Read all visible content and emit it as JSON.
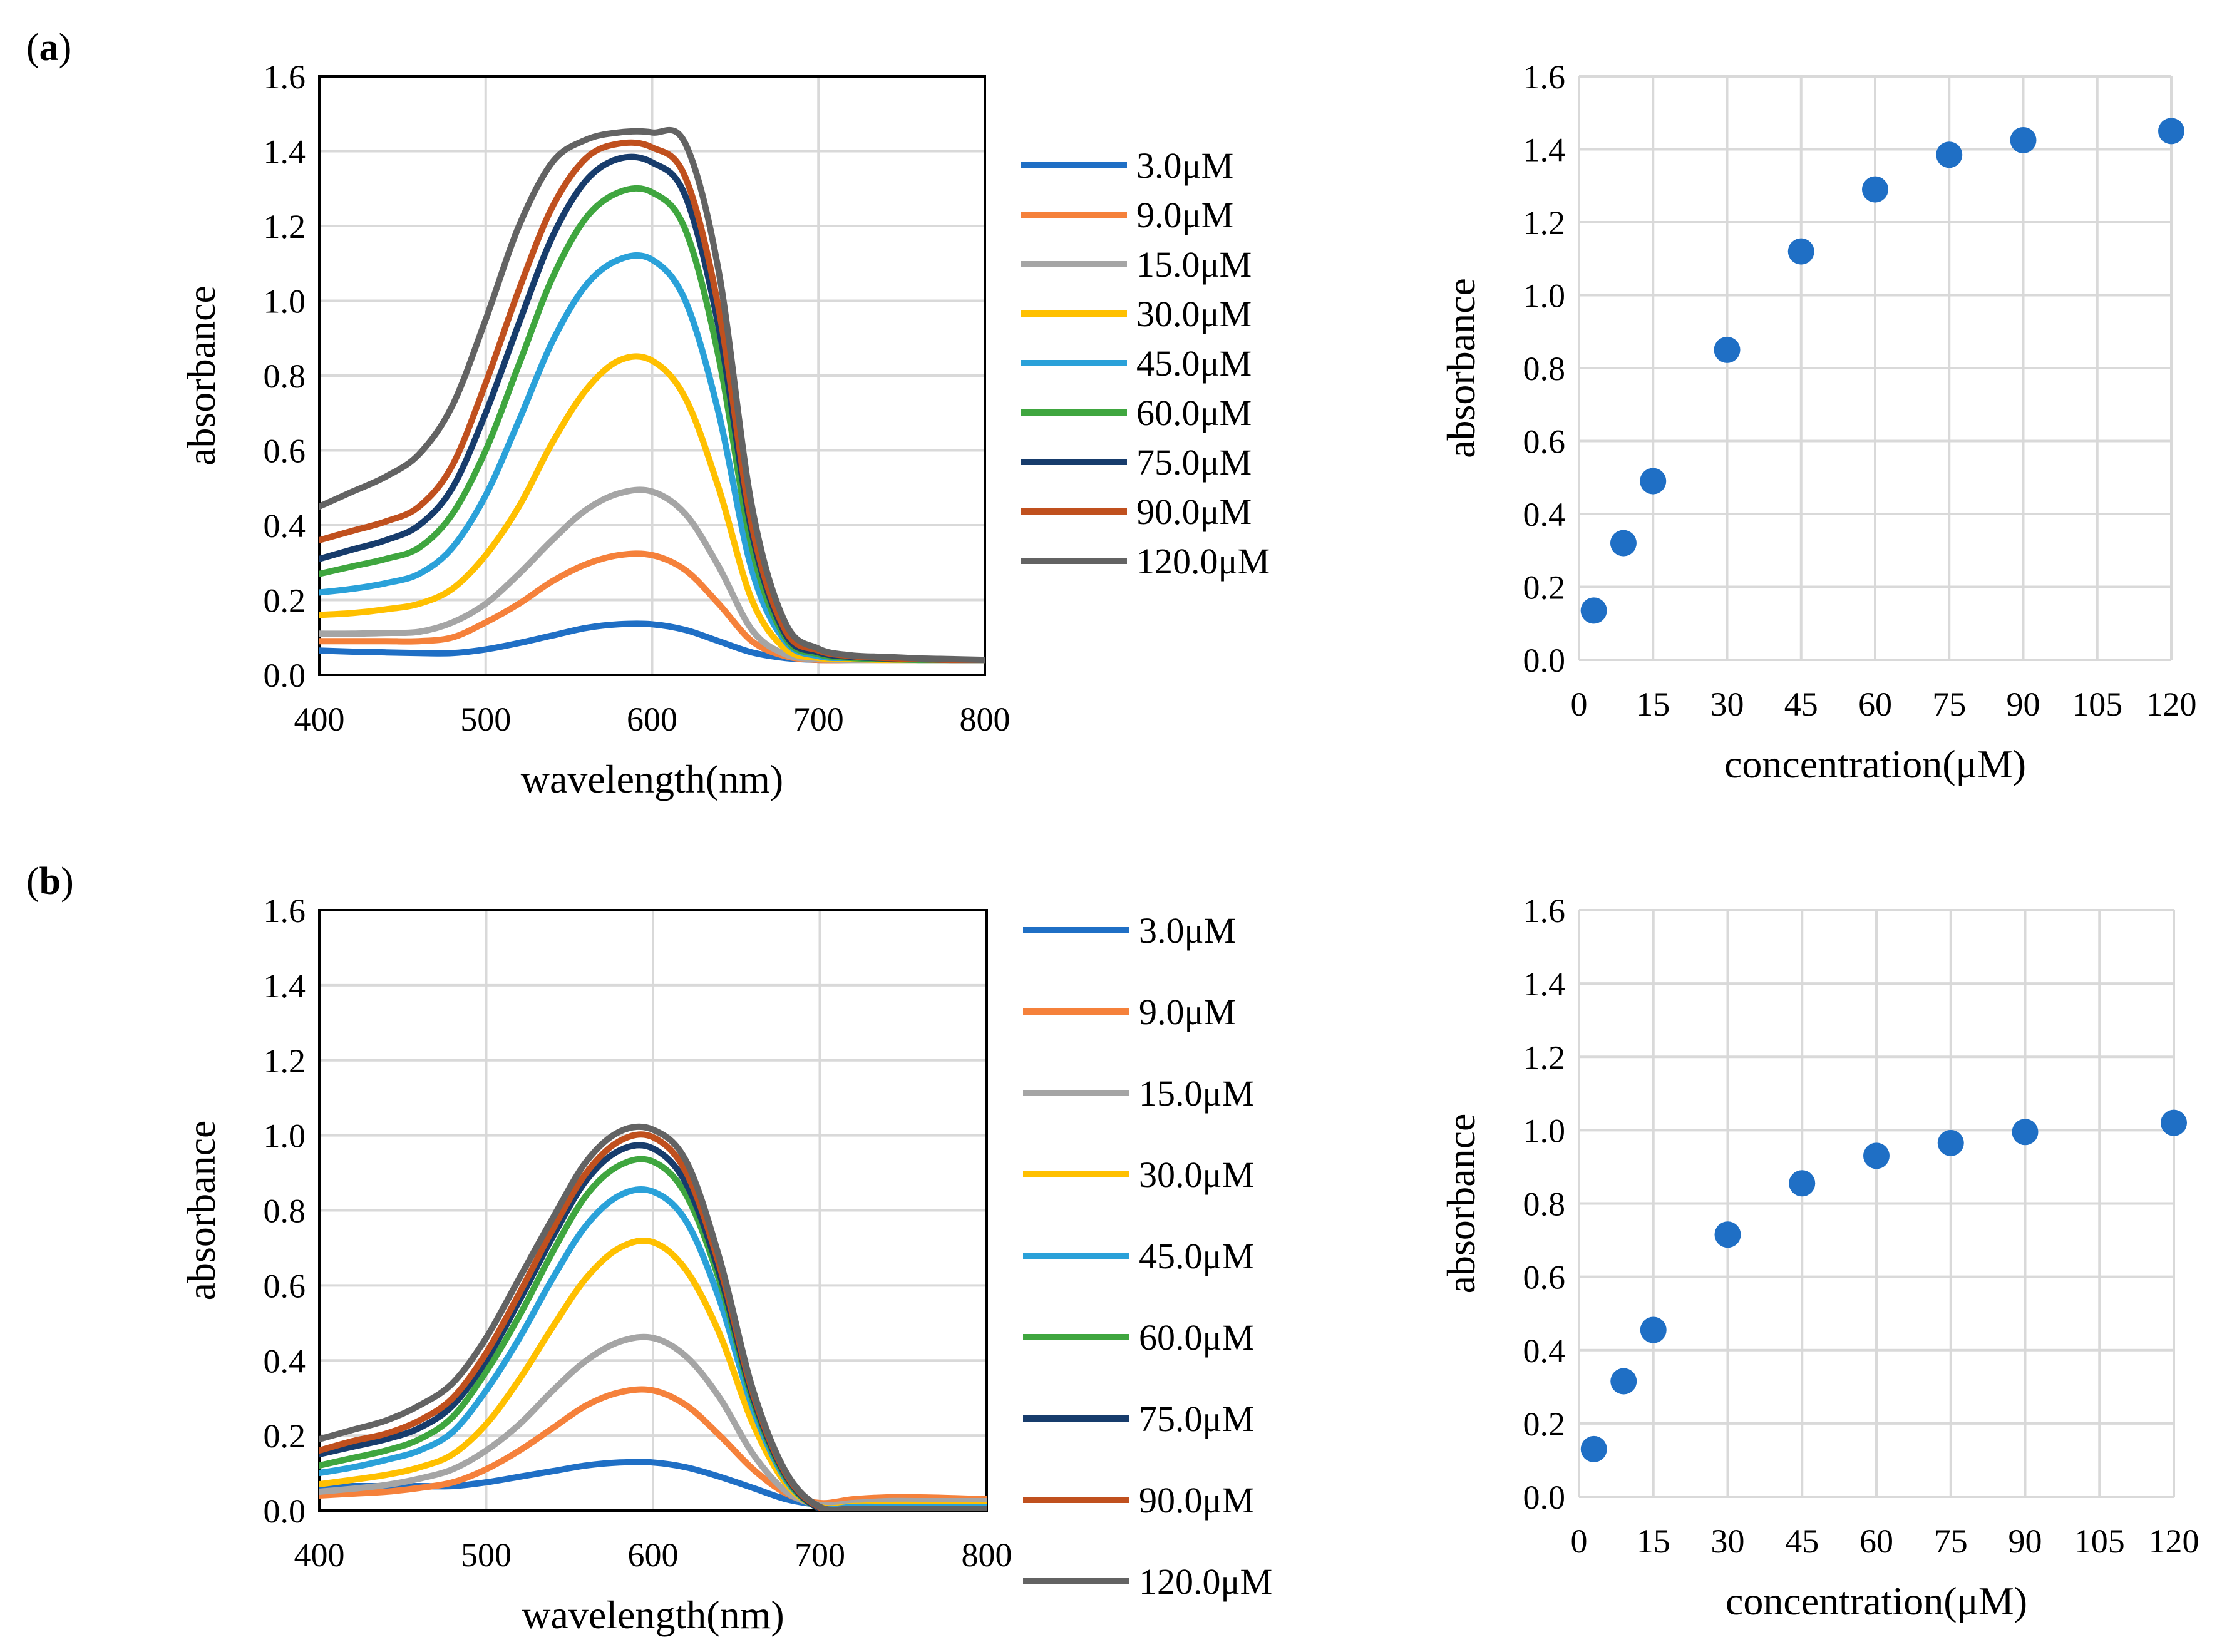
{
  "chart_data": [
    {
      "id": "a_spectra",
      "panel": "a",
      "panel_label": "(a)",
      "type": "line",
      "xlabel": "wavelength(nm)",
      "ylabel": "absorbance",
      "xlim": [
        400,
        800
      ],
      "ylim": [
        0,
        1.6
      ],
      "xticks": [
        400,
        500,
        600,
        700,
        800
      ],
      "yticks": [
        0.0,
        0.2,
        0.4,
        0.6,
        0.8,
        1.0,
        1.2,
        1.4,
        1.6
      ],
      "x": [
        400,
        420,
        440,
        460,
        480,
        500,
        520,
        540,
        560,
        580,
        600,
        620,
        640,
        660,
        680,
        700,
        720,
        740,
        760,
        780,
        800
      ],
      "series": [
        {
          "name": "3.0μM",
          "color": "#1f6fc5",
          "values": [
            0.065,
            0.062,
            0.06,
            0.058,
            0.058,
            0.068,
            0.085,
            0.105,
            0.125,
            0.135,
            0.135,
            0.12,
            0.09,
            0.06,
            0.045,
            0.04,
            0.04,
            0.04,
            0.04,
            0.04,
            0.04
          ]
        },
        {
          "name": "9.0μM",
          "color": "#f5813b",
          "values": [
            0.09,
            0.09,
            0.09,
            0.09,
            0.1,
            0.14,
            0.19,
            0.25,
            0.295,
            0.32,
            0.32,
            0.28,
            0.19,
            0.09,
            0.05,
            0.04,
            0.04,
            0.04,
            0.04,
            0.04,
            0.04
          ]
        },
        {
          "name": "15.0μM",
          "color": "#a5a5a5",
          "values": [
            0.11,
            0.11,
            0.112,
            0.115,
            0.14,
            0.19,
            0.27,
            0.36,
            0.44,
            0.485,
            0.49,
            0.43,
            0.29,
            0.12,
            0.055,
            0.042,
            0.04,
            0.04,
            0.04,
            0.04,
            0.04
          ]
        },
        {
          "name": "30.0μM",
          "color": "#ffc000",
          "values": [
            0.16,
            0.165,
            0.175,
            0.19,
            0.23,
            0.32,
            0.45,
            0.62,
            0.76,
            0.84,
            0.84,
            0.74,
            0.5,
            0.2,
            0.07,
            0.045,
            0.042,
            0.04,
            0.04,
            0.04,
            0.04
          ]
        },
        {
          "name": "45.0μM",
          "color": "#2aa1d9",
          "values": [
            0.22,
            0.23,
            0.245,
            0.27,
            0.34,
            0.48,
            0.68,
            0.89,
            1.04,
            1.11,
            1.11,
            1.0,
            0.7,
            0.28,
            0.09,
            0.05,
            0.045,
            0.042,
            0.04,
            0.04,
            0.04
          ]
        },
        {
          "name": "60.0μM",
          "color": "#3fa63f",
          "values": [
            0.27,
            0.29,
            0.31,
            0.34,
            0.43,
            0.6,
            0.83,
            1.06,
            1.22,
            1.29,
            1.29,
            1.19,
            0.85,
            0.34,
            0.1,
            0.055,
            0.045,
            0.042,
            0.04,
            0.04,
            0.04
          ]
        },
        {
          "name": "75.0μM",
          "color": "#173c6c",
          "values": [
            0.31,
            0.335,
            0.36,
            0.4,
            0.5,
            0.7,
            0.94,
            1.17,
            1.32,
            1.38,
            1.37,
            1.28,
            0.93,
            0.38,
            0.11,
            0.06,
            0.048,
            0.044,
            0.042,
            0.04,
            0.04
          ]
        },
        {
          "name": "90.0μM",
          "color": "#c0501e",
          "values": [
            0.36,
            0.385,
            0.41,
            0.45,
            0.56,
            0.78,
            1.03,
            1.25,
            1.38,
            1.42,
            1.41,
            1.33,
            0.98,
            0.4,
            0.12,
            0.065,
            0.05,
            0.045,
            0.042,
            0.04,
            0.04
          ]
        },
        {
          "name": "120.0μM",
          "color": "#636363",
          "values": [
            0.45,
            0.49,
            0.53,
            0.59,
            0.72,
            0.95,
            1.2,
            1.37,
            1.43,
            1.45,
            1.45,
            1.42,
            1.08,
            0.45,
            0.14,
            0.07,
            0.052,
            0.048,
            0.044,
            0.042,
            0.04
          ]
        }
      ]
    },
    {
      "id": "a_scatter",
      "panel": "a",
      "type": "scatter",
      "xlabel": "concentration(μM)",
      "ylabel": "absorbance",
      "xlim": [
        0,
        120
      ],
      "ylim": [
        0,
        1.6
      ],
      "xticks": [
        0,
        15,
        30,
        45,
        60,
        75,
        90,
        105,
        120
      ],
      "yticks": [
        0.0,
        0.2,
        0.4,
        0.6,
        0.8,
        1.0,
        1.2,
        1.4,
        1.6
      ],
      "color": "#1f6fc5",
      "x": [
        3,
        9,
        15,
        30,
        45,
        60,
        75,
        90,
        120
      ],
      "y": [
        0.135,
        0.32,
        0.49,
        0.85,
        1.12,
        1.29,
        1.385,
        1.425,
        1.45
      ]
    },
    {
      "id": "b_spectra",
      "panel": "b",
      "panel_label": "(b)",
      "type": "line",
      "xlabel": "wavelength(nm)",
      "ylabel": "absorbance",
      "xlim": [
        400,
        800
      ],
      "ylim": [
        0,
        1.6
      ],
      "xticks": [
        400,
        500,
        600,
        700,
        800
      ],
      "yticks": [
        0.0,
        0.2,
        0.4,
        0.6,
        0.8,
        1.0,
        1.2,
        1.4,
        1.6
      ],
      "x": [
        400,
        420,
        440,
        460,
        480,
        500,
        520,
        540,
        560,
        580,
        600,
        620,
        640,
        660,
        680,
        700,
        720,
        740,
        760,
        780,
        800
      ],
      "series": [
        {
          "name": "3.0μM",
          "color": "#1f6fc5",
          "values": [
            0.065,
            0.065,
            0.065,
            0.065,
            0.065,
            0.075,
            0.09,
            0.105,
            0.12,
            0.128,
            0.128,
            0.115,
            0.09,
            0.06,
            0.03,
            0.015,
            0.01,
            0.01,
            0.01,
            0.01,
            0.01
          ]
        },
        {
          "name": "9.0μM",
          "color": "#f5813b",
          "values": [
            0.04,
            0.045,
            0.05,
            0.06,
            0.075,
            0.11,
            0.16,
            0.22,
            0.28,
            0.315,
            0.32,
            0.28,
            0.2,
            0.11,
            0.045,
            0.02,
            0.03,
            0.035,
            0.035,
            0.033,
            0.03
          ]
        },
        {
          "name": "15.0μM",
          "color": "#a5a5a5",
          "values": [
            0.05,
            0.058,
            0.068,
            0.085,
            0.11,
            0.16,
            0.23,
            0.32,
            0.4,
            0.45,
            0.46,
            0.41,
            0.3,
            0.15,
            0.05,
            0.015,
            0.02,
            0.025,
            0.025,
            0.025,
            0.025
          ]
        },
        {
          "name": "30.0μM",
          "color": "#ffc000",
          "values": [
            0.07,
            0.082,
            0.095,
            0.115,
            0.15,
            0.23,
            0.35,
            0.49,
            0.62,
            0.7,
            0.715,
            0.64,
            0.47,
            0.23,
            0.07,
            0.01,
            0.012,
            0.015,
            0.015,
            0.015,
            0.015
          ]
        },
        {
          "name": "45.0μM",
          "color": "#2aa1d9",
          "values": [
            0.1,
            0.115,
            0.135,
            0.16,
            0.21,
            0.32,
            0.46,
            0.62,
            0.76,
            0.84,
            0.85,
            0.77,
            0.56,
            0.27,
            0.08,
            0.008,
            0.01,
            0.01,
            0.01,
            0.01,
            0.01
          ]
        },
        {
          "name": "60.0μM",
          "color": "#3fa63f",
          "values": [
            0.12,
            0.14,
            0.16,
            0.19,
            0.25,
            0.37,
            0.52,
            0.69,
            0.84,
            0.92,
            0.93,
            0.84,
            0.61,
            0.29,
            0.085,
            0.005,
            0.005,
            0.005,
            0.005,
            0.005,
            0.005
          ]
        },
        {
          "name": "75.0μM",
          "color": "#173c6c",
          "values": [
            0.15,
            0.17,
            0.19,
            0.22,
            0.28,
            0.4,
            0.56,
            0.73,
            0.88,
            0.96,
            0.965,
            0.87,
            0.63,
            0.3,
            0.09,
            0.005,
            0.005,
            0.005,
            0.005,
            0.005,
            0.005
          ]
        },
        {
          "name": "90.0μM",
          "color": "#c0501e",
          "values": [
            0.16,
            0.185,
            0.205,
            0.24,
            0.3,
            0.42,
            0.58,
            0.75,
            0.9,
            0.985,
            0.995,
            0.9,
            0.65,
            0.31,
            0.095,
            0.008,
            0.005,
            0.005,
            0.005,
            0.005,
            0.005
          ]
        },
        {
          "name": "120.0μM",
          "color": "#636363",
          "values": [
            0.19,
            0.215,
            0.24,
            0.28,
            0.34,
            0.46,
            0.62,
            0.78,
            0.93,
            1.01,
            1.015,
            0.93,
            0.67,
            0.32,
            0.1,
            0.01,
            0.005,
            0.005,
            0.005,
            0.005,
            0.005
          ]
        }
      ]
    },
    {
      "id": "b_scatter",
      "panel": "b",
      "type": "scatter",
      "xlabel": "concentration(μM)",
      "ylabel": "absorbance",
      "xlim": [
        0,
        120
      ],
      "ylim": [
        0,
        1.6
      ],
      "xticks": [
        0,
        15,
        30,
        45,
        60,
        75,
        90,
        105,
        120
      ],
      "yticks": [
        0.0,
        0.2,
        0.4,
        0.6,
        0.8,
        1.0,
        1.2,
        1.4,
        1.6
      ],
      "color": "#1f6fc5",
      "x": [
        3,
        9,
        15,
        30,
        45,
        60,
        75,
        90,
        120
      ],
      "y": [
        0.13,
        0.315,
        0.455,
        0.715,
        0.855,
        0.93,
        0.965,
        0.995,
        1.02
      ]
    }
  ]
}
